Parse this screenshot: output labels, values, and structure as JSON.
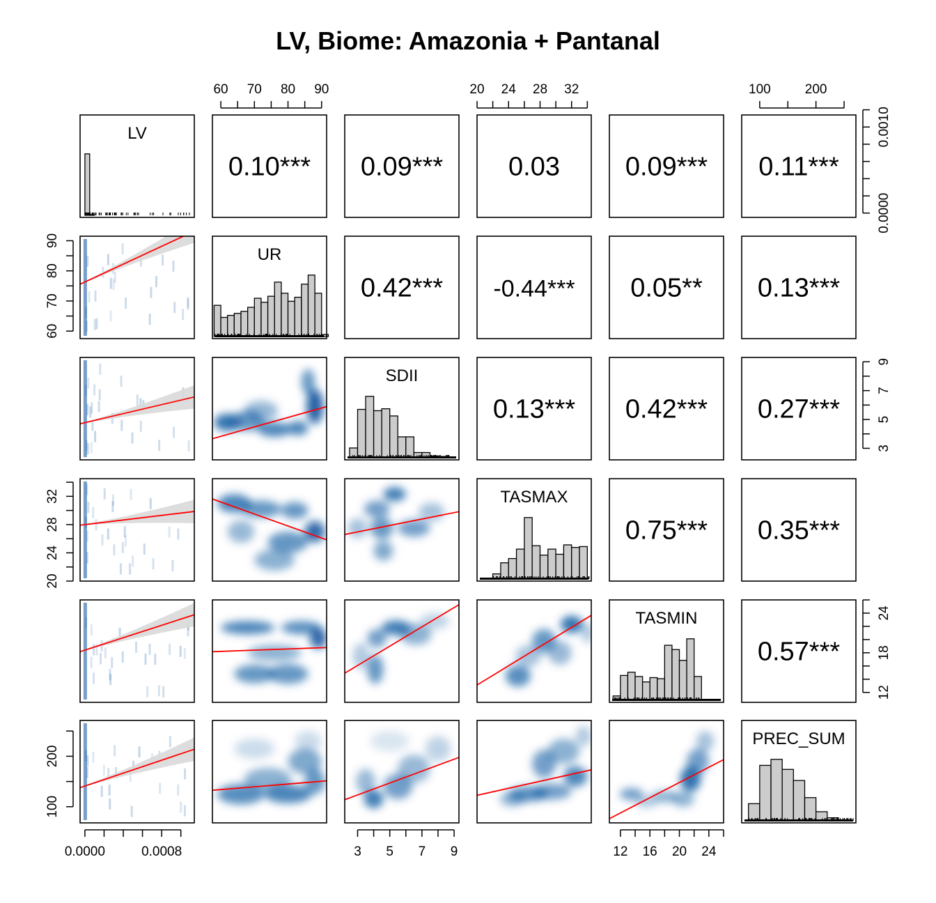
{
  "chart_data": {
    "type": "pairs-matrix",
    "title": "LV, Biome: Amazonia + Pantanal",
    "variables": [
      "LV",
      "UR",
      "SDII",
      "TASMAX",
      "TASMIN",
      "PREC_SUM"
    ],
    "ranges": {
      "LV": [
        -5e-05,
        0.00114
      ],
      "UR": [
        57.5,
        91.5
      ],
      "SDII": [
        2.2,
        9.3
      ],
      "TASMAX": [
        20,
        34.5
      ],
      "TASMIN": [
        10.5,
        26
      ],
      "PREC_SUM": [
        68,
        271
      ]
    },
    "axis_ticks": {
      "LV_bottom": {
        "ticks": [
          0,
          0.0002,
          0.0004,
          0.0006,
          0.0008,
          0.001
        ],
        "labels": [
          "0.0000",
          "0.0008"
        ],
        "label_values": [
          0,
          0.0008
        ]
      },
      "UR_top": {
        "ticks": [
          60,
          65,
          70,
          75,
          80,
          85,
          90
        ],
        "labels": [
          "60",
          "70",
          "80",
          "90"
        ],
        "label_values": [
          60,
          70,
          80,
          90
        ]
      },
      "UR_left": {
        "ticks": [
          60,
          65,
          70,
          75,
          80,
          85,
          90
        ],
        "labels": [
          "60",
          "70",
          "80",
          "90"
        ],
        "label_values": [
          60,
          70,
          80,
          90
        ]
      },
      "SDII_bottom": {
        "ticks": [
          3,
          4,
          5,
          6,
          7,
          8,
          9
        ],
        "labels": [
          "3",
          "5",
          "7",
          "9"
        ],
        "label_values": [
          3,
          5,
          7,
          9
        ]
      },
      "SDII_right": {
        "ticks": [
          3,
          4,
          5,
          6,
          7,
          8,
          9
        ],
        "labels": [
          "3",
          "5",
          "7",
          "9"
        ],
        "label_values": [
          3,
          5,
          7,
          9
        ]
      },
      "TASMAX_top": {
        "ticks": [
          20,
          22,
          24,
          26,
          28,
          30,
          32,
          34
        ],
        "labels": [
          "20",
          "24",
          "28",
          "32"
        ],
        "label_values": [
          20,
          24,
          28,
          32
        ]
      },
      "TASMAX_left": {
        "ticks": [
          20,
          22,
          24,
          26,
          28,
          30,
          32,
          34
        ],
        "labels": [
          "20",
          "24",
          "28",
          "32"
        ],
        "label_values": [
          20,
          24,
          28,
          32
        ]
      },
      "TASMIN_bottom": {
        "ticks": [
          12,
          14,
          16,
          18,
          20,
          22,
          24,
          26
        ],
        "labels": [
          "12",
          "16",
          "20",
          "24"
        ],
        "label_values": [
          12,
          16,
          20,
          24
        ]
      },
      "TASMIN_right": {
        "ticks": [
          12,
          14,
          16,
          18,
          20,
          22,
          24,
          26
        ],
        "labels": [
          "12",
          "18",
          "24"
        ],
        "label_values": [
          12,
          18,
          24
        ]
      },
      "PREC_SUM_top": {
        "ticks": [
          100,
          150,
          200,
          250
        ],
        "labels": [
          "100",
          "200"
        ],
        "label_values": [
          100,
          200
        ]
      },
      "PREC_SUM_left": {
        "ticks": [
          100,
          150,
          200,
          250
        ],
        "labels": [
          "100",
          "200"
        ],
        "label_values": [
          100,
          200
        ]
      },
      "density_right": {
        "ticks": [
          0,
          0.0002,
          0.0004,
          0.0006,
          0.0008,
          0.001,
          0.0012
        ],
        "labels": [
          "0.0000",
          "0.0010"
        ],
        "label_values": [
          0,
          0.001
        ],
        "range": [
          -5e-05,
          0.00114
        ]
      }
    },
    "correlations": [
      {
        "row": "LV",
        "col": "UR",
        "label": "0.10***"
      },
      {
        "row": "LV",
        "col": "SDII",
        "label": "0.09***"
      },
      {
        "row": "LV",
        "col": "TASMAX",
        "label": "0.03"
      },
      {
        "row": "LV",
        "col": "TASMIN",
        "label": "0.09***"
      },
      {
        "row": "LV",
        "col": "PREC_SUM",
        "label": "0.11***"
      },
      {
        "row": "UR",
        "col": "SDII",
        "label": "0.42***"
      },
      {
        "row": "UR",
        "col": "TASMAX",
        "label": "-0.44***"
      },
      {
        "row": "UR",
        "col": "TASMIN",
        "label": "0.05**"
      },
      {
        "row": "UR",
        "col": "PREC_SUM",
        "label": "0.13***"
      },
      {
        "row": "SDII",
        "col": "TASMAX",
        "label": "0.13***"
      },
      {
        "row": "SDII",
        "col": "TASMIN",
        "label": "0.42***"
      },
      {
        "row": "SDII",
        "col": "PREC_SUM",
        "label": "0.27***"
      },
      {
        "row": "TASMAX",
        "col": "TASMIN",
        "label": "0.75***"
      },
      {
        "row": "TASMAX",
        "col": "PREC_SUM",
        "label": "0.35***"
      },
      {
        "row": "TASMIN",
        "col": "PREC_SUM",
        "label": "0.57***"
      }
    ],
    "histograms": {
      "LV": {
        "edges": [
          0,
          5e-05,
          0.0001
        ],
        "heights": [
          0.0008,
          1e-05
        ]
      },
      "UR": {
        "edges": [
          58,
          60,
          62,
          64,
          66,
          68,
          70,
          72,
          74,
          76,
          78,
          80,
          82,
          84,
          86,
          88,
          90,
          92
        ],
        "heights": [
          0.31,
          0.19,
          0.21,
          0.23,
          0.25,
          0.29,
          0.38,
          0.34,
          0.4,
          0.54,
          0.43,
          0.35,
          0.39,
          0.52,
          0.61,
          0.43,
          0.02
        ]
      },
      "SDII": {
        "edges": [
          2.5,
          3.0,
          3.5,
          4.0,
          4.5,
          5.0,
          5.5,
          6.0,
          6.5,
          7.0,
          7.5,
          8.0,
          8.5
        ],
        "heights": [
          0.15,
          0.74,
          0.94,
          0.72,
          0.75,
          0.64,
          0.32,
          0.32,
          0.08,
          0.08,
          0.03,
          0.02
        ]
      },
      "TASMAX": {
        "edges": [
          22,
          23,
          24,
          25,
          26,
          27,
          28,
          29,
          30,
          31,
          32,
          33,
          34
        ],
        "heights": [
          0.06,
          0.19,
          0.24,
          0.35,
          0.72,
          0.39,
          0.28,
          0.35,
          0.29,
          0.4,
          0.37,
          0.38
        ]
      },
      "TASMIN": {
        "edges": [
          11,
          12,
          13,
          14,
          15,
          16,
          17,
          18,
          19,
          20,
          21,
          22,
          23
        ],
        "heights": [
          0.04,
          0.23,
          0.26,
          0.22,
          0.17,
          0.21,
          0.2,
          0.51,
          0.47,
          0.37,
          0.57,
          0.22,
          0.02
        ]
      },
      "PREC_SUM": {
        "edges": [
          80,
          100,
          120,
          140,
          160,
          180,
          200,
          220,
          240,
          260
        ],
        "heights": [
          0.17,
          0.55,
          0.61,
          0.51,
          0.4,
          0.23,
          0.09,
          0.03,
          0.01
        ]
      }
    },
    "fits": [
      {
        "x": "LV",
        "y": "UR",
        "intercept": 76.3,
        "slope": 14810
      },
      {
        "x": "LV",
        "y": "SDII",
        "intercept": 4.78,
        "slope": 1560
      },
      {
        "x": "LV",
        "y": "TASMAX",
        "intercept": 28.0,
        "slope": 1630
      },
      {
        "x": "LV",
        "y": "TASMIN",
        "intercept": 18.4,
        "slope": 4700
      },
      {
        "x": "LV",
        "y": "PREC_SUM",
        "intercept": 141,
        "slope": 64000
      },
      {
        "x": "UR",
        "y": "SDII",
        "intercept": -0.1,
        "slope": 0.0655
      },
      {
        "x": "UR",
        "y": "TASMAX",
        "intercept": 41.4,
        "slope": -0.17
      },
      {
        "x": "UR",
        "y": "TASMIN",
        "intercept": 17.1,
        "slope": 0.0185
      },
      {
        "x": "UR",
        "y": "PREC_SUM",
        "intercept": 101,
        "slope": 0.55
      },
      {
        "x": "SDII",
        "y": "TASMAX",
        "intercept": 25.6,
        "slope": 0.455
      },
      {
        "x": "SDII",
        "y": "TASMIN",
        "intercept": 11.7,
        "slope": 1.46
      },
      {
        "x": "SDII",
        "y": "PREC_SUM",
        "intercept": 88,
        "slope": 11.8
      },
      {
        "x": "TASMAX",
        "y": "TASMIN",
        "intercept": -1.42,
        "slope": 0.727
      },
      {
        "x": "TASMAX",
        "y": "PREC_SUM",
        "intercept": 53,
        "slope": 3.48
      },
      {
        "x": "TASMIN",
        "y": "PREC_SUM",
        "intercept": -3,
        "slope": 7.55
      }
    ],
    "density_blobs": [
      {
        "x": "UR",
        "y": "SDII",
        "blobs": [
          [
            62,
            4.8,
            4,
            0.6,
            0.8
          ],
          [
            68,
            4.9,
            5,
            0.7,
            0.6
          ],
          [
            76,
            4.3,
            5,
            0.5,
            0.7
          ],
          [
            83,
            4.4,
            3,
            0.5,
            0.7
          ],
          [
            88,
            5.9,
            2.5,
            1.2,
            0.9
          ],
          [
            86,
            7.6,
            2,
            0.9,
            0.6
          ],
          [
            72,
            5.6,
            5,
            0.7,
            0.4
          ]
        ]
      },
      {
        "x": "UR",
        "y": "TASMAX",
        "blobs": [
          [
            64,
            31.0,
            5,
            1.3,
            0.7
          ],
          [
            72,
            30.2,
            6,
            1.2,
            0.6
          ],
          [
            82,
            30.0,
            4,
            1.2,
            0.6
          ],
          [
            88,
            27.0,
            3,
            1.5,
            0.85
          ],
          [
            80,
            25.5,
            6,
            1.5,
            0.6
          ],
          [
            76,
            23.0,
            6,
            1.5,
            0.45
          ],
          [
            66,
            27.0,
            4,
            1.6,
            0.4
          ]
        ]
      },
      {
        "x": "UR",
        "y": "TASMIN",
        "blobs": [
          [
            68,
            21.8,
            8,
            1.0,
            0.7
          ],
          [
            84,
            21.8,
            6,
            1.0,
            0.65
          ],
          [
            89,
            20.2,
            2.5,
            1.6,
            0.85
          ],
          [
            76,
            18.0,
            8,
            1.2,
            0.45
          ],
          [
            70,
            14.8,
            6,
            1.4,
            0.6
          ],
          [
            80,
            14.8,
            6,
            1.5,
            0.6
          ]
        ]
      },
      {
        "x": "UR",
        "y": "PREC_SUM",
        "blobs": [
          [
            66,
            125,
            7,
            20,
            0.65
          ],
          [
            80,
            125,
            7,
            18,
            0.7
          ],
          [
            88,
            150,
            3,
            25,
            0.6
          ],
          [
            74,
            155,
            7,
            22,
            0.45
          ],
          [
            85,
            190,
            5,
            25,
            0.5
          ],
          [
            70,
            215,
            6,
            20,
            0.2
          ],
          [
            86,
            230,
            4,
            20,
            0.2
          ]
        ]
      },
      {
        "x": "SDII",
        "y": "TASMAX",
        "blobs": [
          [
            5.3,
            32.3,
            0.7,
            1.0,
            0.75
          ],
          [
            4.2,
            30.2,
            0.8,
            1.2,
            0.55
          ],
          [
            6.5,
            27.5,
            1.0,
            1.2,
            0.55
          ],
          [
            4.5,
            27.5,
            0.7,
            1.5,
            0.6
          ],
          [
            4.6,
            24.3,
            0.6,
            1.4,
            0.5
          ],
          [
            7.6,
            29.8,
            0.8,
            1.3,
            0.35
          ],
          [
            3.0,
            27.5,
            0.6,
            1.4,
            0.35
          ]
        ]
      },
      {
        "x": "SDII",
        "y": "TASMIN",
        "blobs": [
          [
            5.4,
            21.8,
            0.9,
            1.1,
            0.75
          ],
          [
            4.2,
            20.2,
            0.6,
            1.4,
            0.55
          ],
          [
            4.1,
            15.5,
            0.5,
            2.2,
            0.6
          ],
          [
            6.6,
            20.8,
            1.0,
            1.6,
            0.45
          ],
          [
            7.8,
            22.8,
            0.9,
            1.2,
            0.25
          ],
          [
            3.2,
            17.5,
            0.5,
            2.0,
            0.3
          ]
        ]
      },
      {
        "x": "SDII",
        "y": "PREC_SUM",
        "blobs": [
          [
            4.0,
            115,
            0.6,
            18,
            0.75
          ],
          [
            5.5,
            140,
            0.9,
            25,
            0.55
          ],
          [
            6.5,
            175,
            1.0,
            28,
            0.4
          ],
          [
            3.5,
            150,
            0.6,
            25,
            0.4
          ],
          [
            8.0,
            215,
            0.8,
            25,
            0.25
          ],
          [
            5.0,
            230,
            1.2,
            20,
            0.15
          ]
        ]
      },
      {
        "x": "TASMAX",
        "y": "TASMIN",
        "blobs": [
          [
            32.0,
            22.3,
            1.4,
            1.3,
            0.8
          ],
          [
            28.5,
            19.8,
            1.5,
            1.8,
            0.6
          ],
          [
            25.2,
            14.5,
            1.6,
            1.6,
            0.65
          ],
          [
            30.5,
            18.0,
            1.5,
            1.8,
            0.4
          ],
          [
            26.5,
            17.5,
            1.6,
            1.6,
            0.35
          ],
          [
            34.0,
            21.0,
            0.8,
            1.5,
            0.3
          ]
        ]
      },
      {
        "x": "TASMAX",
        "y": "PREC_SUM",
        "blobs": [
          [
            26.5,
            125,
            2.5,
            15,
            0.65
          ],
          [
            32.5,
            160,
            1.5,
            20,
            0.7
          ],
          [
            29.5,
            130,
            2.5,
            16,
            0.55
          ],
          [
            28.5,
            185,
            1.5,
            28,
            0.55
          ],
          [
            31.0,
            210,
            2.0,
            25,
            0.45
          ],
          [
            24.5,
            115,
            1.6,
            14,
            0.45
          ],
          [
            33.5,
            240,
            1.0,
            20,
            0.3
          ]
        ]
      },
      {
        "x": "TASMIN",
        "y": "PREC_SUM",
        "blobs": [
          [
            21.5,
            155,
            1.4,
            25,
            0.8
          ],
          [
            13.5,
            125,
            1.6,
            12,
            0.55
          ],
          [
            18.0,
            120,
            1.8,
            12,
            0.45
          ],
          [
            20.5,
            115,
            1.5,
            15,
            0.45
          ],
          [
            22.5,
            190,
            1.5,
            25,
            0.55
          ],
          [
            23.5,
            230,
            1.2,
            20,
            0.35
          ],
          [
            15.5,
            110,
            1.5,
            12,
            0.3
          ]
        ]
      }
    ],
    "colors": {
      "density": "#08519c",
      "fit_line": "#ff0000",
      "confidence_band": "#d9d9d9",
      "hist_fill": "#cccccc",
      "frame": "#000000"
    }
  }
}
